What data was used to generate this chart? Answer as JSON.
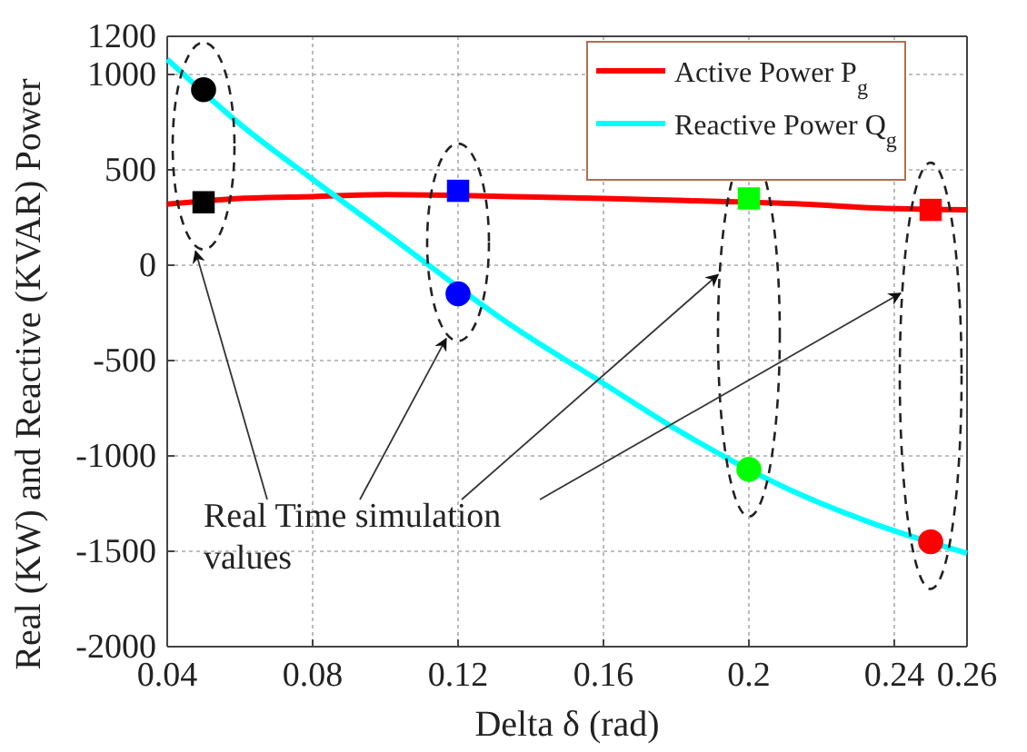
{
  "chart_data": {
    "type": "line",
    "xlabel": "Delta δ (rad)",
    "ylabel": "Real (KW) and Reactive (KVAR) Power",
    "xlim": [
      0.04,
      0.26
    ],
    "xticks": [
      0.04,
      0.08,
      0.12,
      0.16,
      0.2,
      0.24,
      0.26
    ],
    "ylim": [
      -2000,
      1200
    ],
    "yticks": [
      -2000,
      -1500,
      -1000,
      -500,
      0,
      500,
      1000,
      1200
    ],
    "grid": true,
    "legend": "top right",
    "series": [
      {
        "name": "Active Power P$_{g}$",
        "color": "#ff0000",
        "x": [
          0.04,
          0.06,
          0.08,
          0.1,
          0.135,
          0.16,
          0.18,
          0.215,
          0.235,
          0.26
        ],
        "values": [
          320,
          350,
          360,
          370,
          360,
          350,
          340,
          320,
          300,
          290
        ]
      },
      {
        "name": "Reactive Power Q$_{g}$",
        "color": "#00ffff",
        "x": [
          0.04,
          0.06,
          0.08,
          0.1,
          0.135,
          0.16,
          0.18,
          0.215,
          0.235,
          0.26
        ],
        "values": [
          1080,
          740,
          450,
          170,
          -320,
          -620,
          -860,
          -1210,
          -1360,
          -1510
        ]
      },
      {
        "type": "scatter",
        "marker": "square",
        "colors": [
          "#000000",
          "#0000ff",
          "#00ff00",
          "#ff0000"
        ],
        "x": [
          0.05,
          0.12,
          0.2,
          0.25
        ],
        "values": [
          330,
          390,
          350,
          290
        ]
      },
      {
        "type": "scatter",
        "marker": "circle",
        "colors": [
          "#000000",
          "#0000ff",
          "#00ff00",
          "#ff0000"
        ],
        "x": [
          0.05,
          0.12,
          0.2,
          0.25
        ],
        "values": [
          920,
          -150,
          -1070,
          -1450
        ]
      }
    ],
    "annotations": [
      "Real Time simulation values"
    ]
  }
}
